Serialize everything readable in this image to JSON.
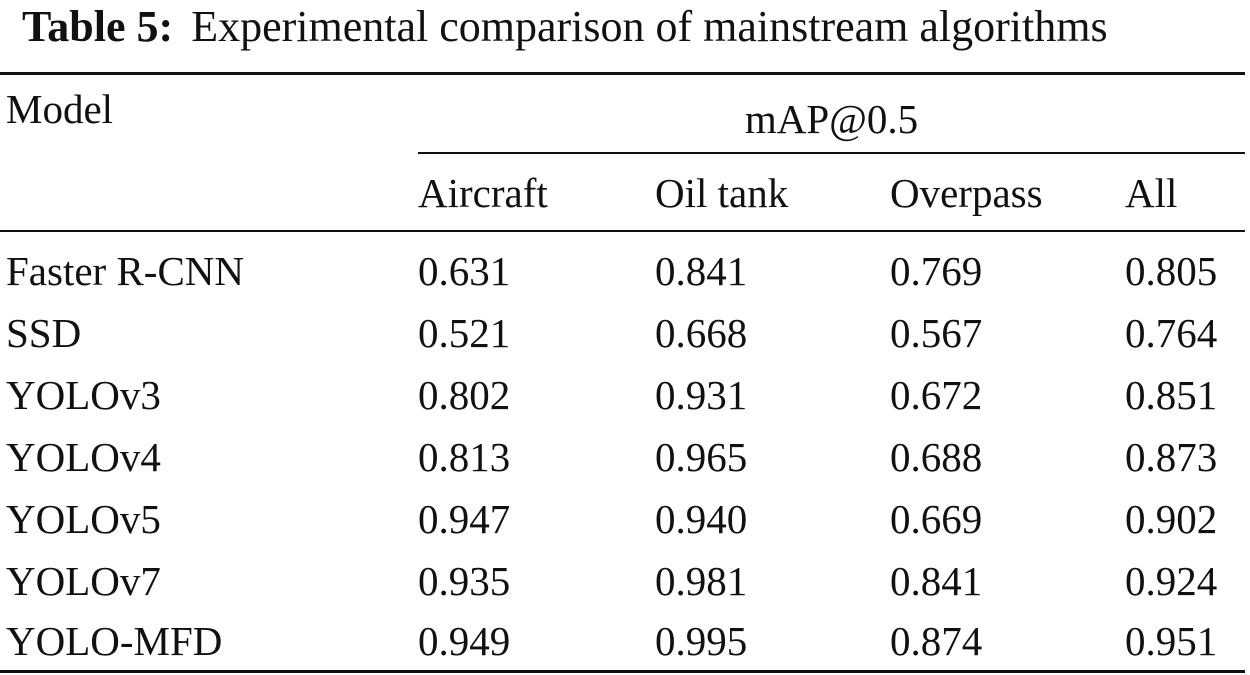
{
  "caption": {
    "label": "Table 5:",
    "title": "Experimental comparison of mainstream algorithms"
  },
  "table": {
    "model_header": "Model",
    "group_header": "mAP@0.5",
    "sub_headers": [
      "Aircraft",
      "Oil tank",
      "Overpass",
      "All"
    ],
    "rows": [
      {
        "model": "Faster R-CNN",
        "values": [
          "0.631",
          "0.841",
          "0.769",
          "0.805"
        ]
      },
      {
        "model": "SSD",
        "values": [
          "0.521",
          "0.668",
          "0.567",
          "0.764"
        ]
      },
      {
        "model": "YOLOv3",
        "values": [
          "0.802",
          "0.931",
          "0.672",
          "0.851"
        ]
      },
      {
        "model": "YOLOv4",
        "values": [
          "0.813",
          "0.965",
          "0.688",
          "0.873"
        ]
      },
      {
        "model": "YOLOv5",
        "values": [
          "0.947",
          "0.940",
          "0.669",
          "0.902"
        ]
      },
      {
        "model": "YOLOv7",
        "values": [
          "0.935",
          "0.981",
          "0.841",
          "0.924"
        ]
      },
      {
        "model": "YOLO-MFD",
        "values": [
          "0.949",
          "0.995",
          "0.874",
          "0.951"
        ]
      }
    ]
  }
}
